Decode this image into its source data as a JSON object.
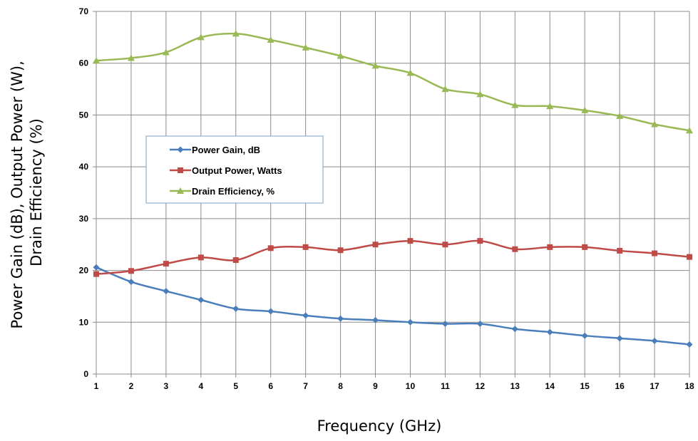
{
  "chart_data": {
    "type": "line",
    "title": "",
    "xlabel": "Frequency (GHz)",
    "ylabel_lines": [
      "Power Gain (dB), Output Power (W),",
      "Drain Efficiency (%)"
    ],
    "x": [
      1,
      2,
      3,
      4,
      5,
      6,
      7,
      8,
      9,
      10,
      11,
      12,
      13,
      14,
      15,
      16,
      17,
      18
    ],
    "xlim": [
      1,
      18
    ],
    "ylim": [
      0,
      70
    ],
    "yticks": [
      0,
      10,
      20,
      30,
      40,
      50,
      60,
      70
    ],
    "grid": true,
    "legend_position": "center-left",
    "series": [
      {
        "name": "Power Gain, dB",
        "color": "#4a7ebb",
        "marker": "diamond",
        "values": [
          20.6,
          17.8,
          16.0,
          14.3,
          12.6,
          12.1,
          11.3,
          10.7,
          10.4,
          10.0,
          9.7,
          9.7,
          8.7,
          8.1,
          7.4,
          6.9,
          6.4,
          5.7
        ]
      },
      {
        "name": "Output Power, Watts",
        "color": "#be4b48",
        "marker": "square",
        "values": [
          19.3,
          19.9,
          21.3,
          22.5,
          22.0,
          24.3,
          24.5,
          23.9,
          25.0,
          25.7,
          25.0,
          25.7,
          24.1,
          24.5,
          24.5,
          23.8,
          23.3,
          22.6
        ]
      },
      {
        "name": "Drain Efficiency, %",
        "color": "#98b954",
        "marker": "triangle",
        "values": [
          60.5,
          61.0,
          62.1,
          65.0,
          65.7,
          64.5,
          63.0,
          61.4,
          59.5,
          58.1,
          55.0,
          54.0,
          51.9,
          51.7,
          50.9,
          49.8,
          48.2,
          47.0
        ]
      }
    ]
  }
}
